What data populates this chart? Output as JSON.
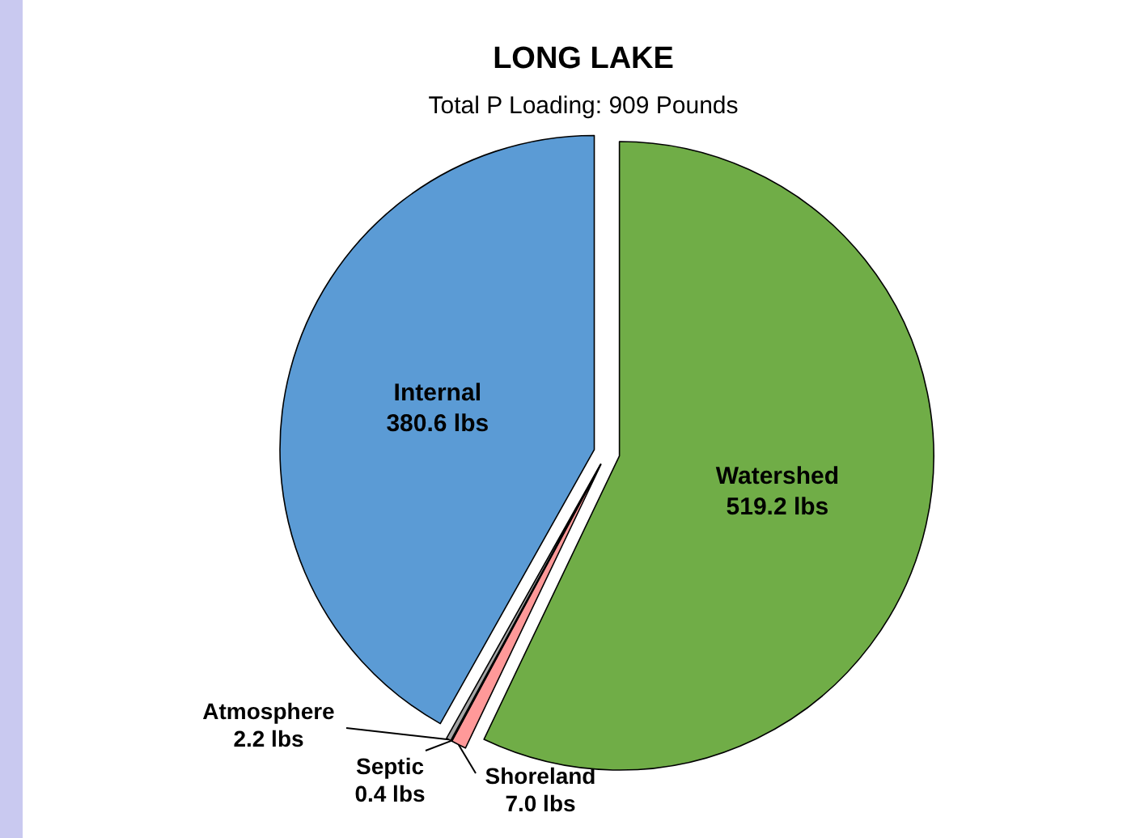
{
  "chart_data": {
    "type": "pie",
    "title": "LONG LAKE",
    "subtitle": "Total P Loading: 909 Pounds",
    "categories": [
      "Watershed",
      "Shoreland",
      "Septic",
      "Atmosphere",
      "Internal"
    ],
    "values": [
      519.2,
      7.0,
      0.4,
      2.2,
      380.6
    ],
    "value_labels": [
      "519.2 lbs",
      "7.0 lbs",
      "0.4 lbs",
      "2.2 lbs",
      "380.6 lbs"
    ],
    "colors": [
      "#70ad47",
      "#ff9999",
      "#404040",
      "#a5a5a5",
      "#5b9bd5"
    ],
    "legend": false
  }
}
